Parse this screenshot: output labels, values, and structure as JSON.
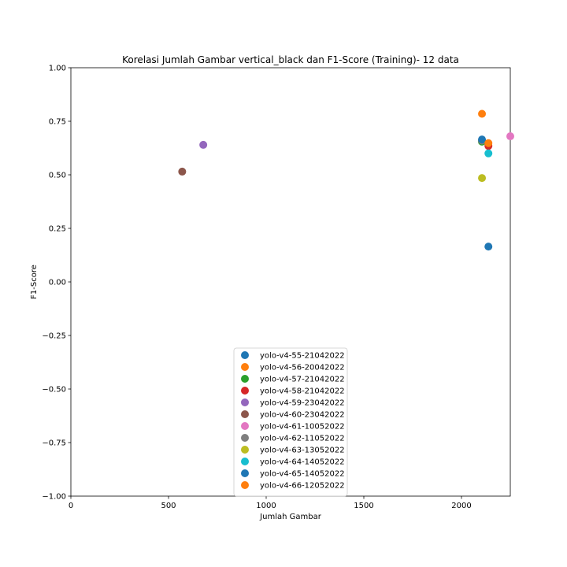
{
  "chart_data": {
    "type": "scatter",
    "title": "Korelasi Jumlah Gambar vertical_black dan F1-Score (Training)- 12 data",
    "xlabel": "Jumlah Gambar",
    "ylabel": "F1-Score",
    "xlim": [
      0,
      2250
    ],
    "ylim": [
      -1.0,
      1.0
    ],
    "x_ticks": [
      0,
      500,
      1000,
      1500,
      2000
    ],
    "x_tick_labels": [
      "0",
      "500",
      "1000",
      "1500",
      "2000"
    ],
    "y_ticks": [
      -1.0,
      -0.75,
      -0.5,
      -0.25,
      0.0,
      0.25,
      0.5,
      0.75,
      1.0
    ],
    "y_tick_labels": [
      "−1.00",
      "−0.75",
      "−0.50",
      "−0.25",
      "0.00",
      "0.25",
      "0.50",
      "0.75",
      "1.00"
    ],
    "grid": false,
    "legend_position": "lower-center",
    "series": [
      {
        "name": "yolo-v4-55-21042022",
        "color": "#1f77b4",
        "x": 2138,
        "y": 0.165
      },
      {
        "name": "yolo-v4-56-20042022",
        "color": "#ff7f0e",
        "x": 2105,
        "y": 0.785
      },
      {
        "name": "yolo-v4-57-21042022",
        "color": "#2ca02c",
        "x": 2105,
        "y": 0.655
      },
      {
        "name": "yolo-v4-58-21042022",
        "color": "#d62728",
        "x": 2138,
        "y": 0.635
      },
      {
        "name": "yolo-v4-59-23042022",
        "color": "#9467bd",
        "x": 678,
        "y": 0.64
      },
      {
        "name": "yolo-v4-60-23042022",
        "color": "#8c564b",
        "x": 570,
        "y": 0.515
      },
      {
        "name": "yolo-v4-61-10052022",
        "color": "#e377c2",
        "x": 2250,
        "y": 0.68
      },
      {
        "name": "yolo-v4-62-11052022",
        "color": "#7f7f7f",
        "x": 2105,
        "y": 0.66
      },
      {
        "name": "yolo-v4-63-13052022",
        "color": "#bcbd22",
        "x": 2105,
        "y": 0.485
      },
      {
        "name": "yolo-v4-64-14052022",
        "color": "#17becf",
        "x": 2138,
        "y": 0.6
      },
      {
        "name": "yolo-v4-65-14052022",
        "color": "#1f77b4",
        "x": 2105,
        "y": 0.665
      },
      {
        "name": "yolo-v4-66-12052022",
        "color": "#ff7f0e",
        "x": 2138,
        "y": 0.648
      }
    ]
  }
}
